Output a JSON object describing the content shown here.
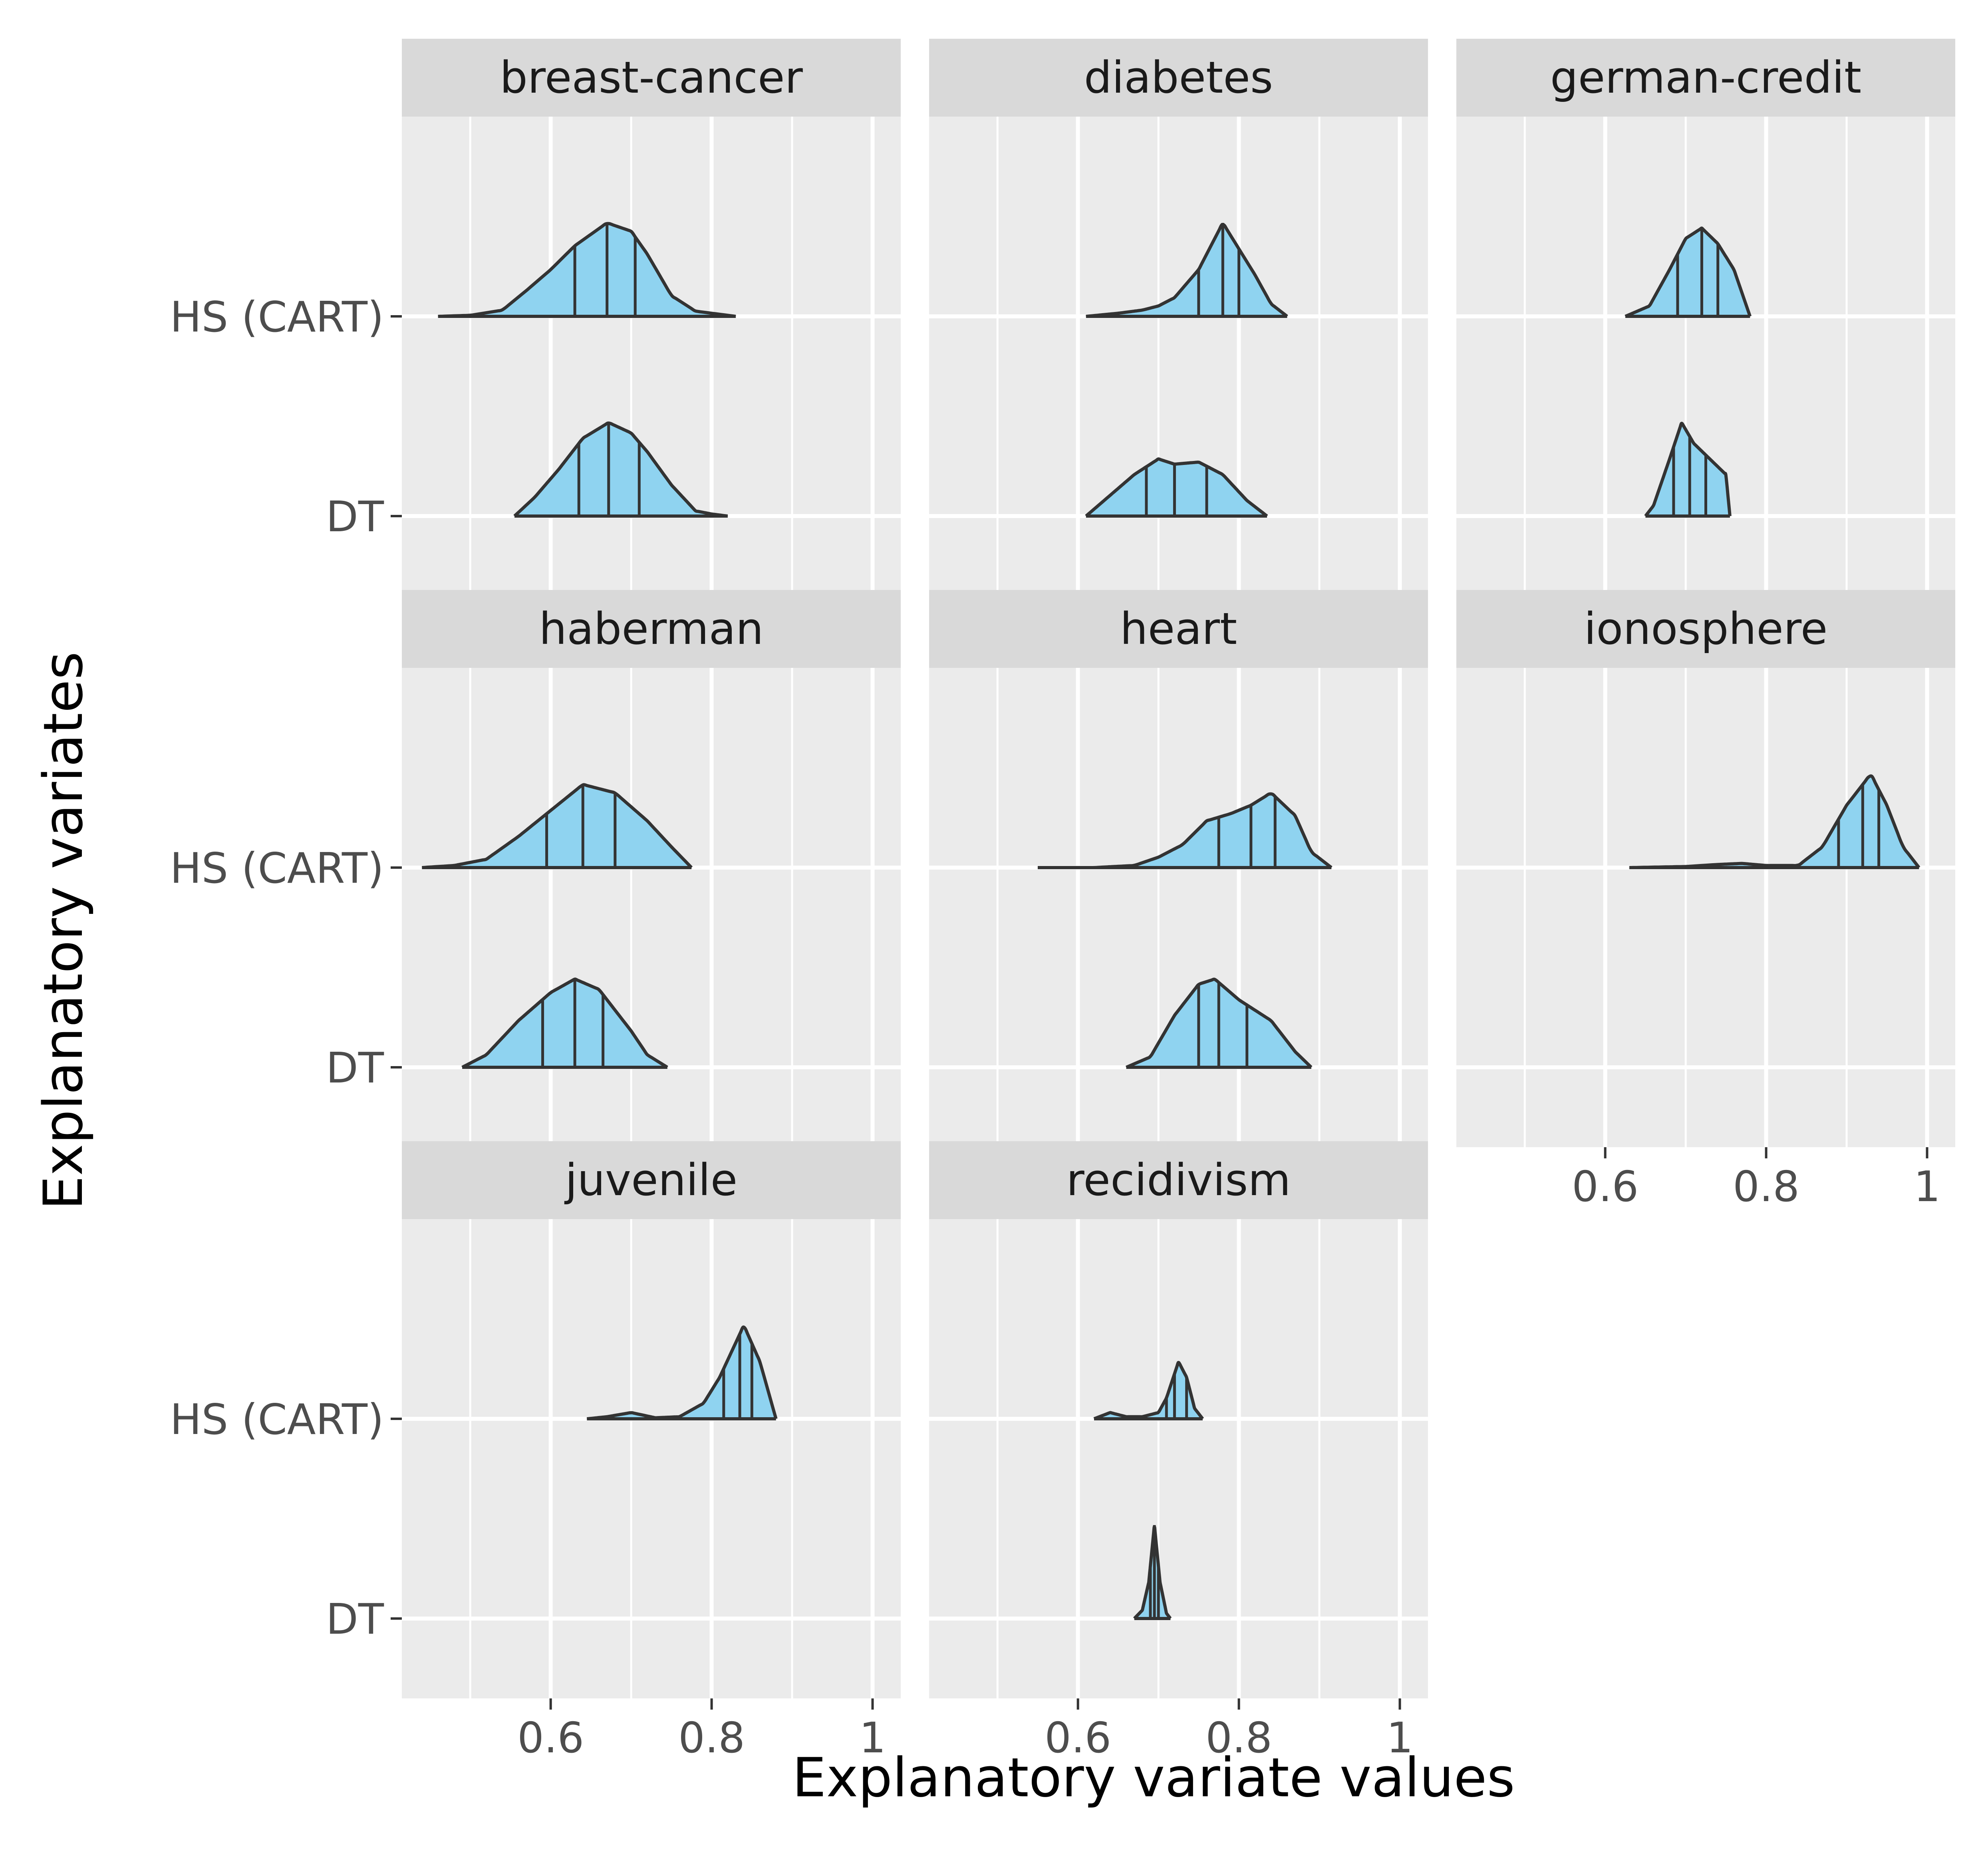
{
  "chart_data": {
    "type": "ridgeline",
    "xlabel": "Explanatory variate values",
    "ylabel": "Explanatory variates",
    "xticks": [
      0.6,
      0.8,
      1
    ],
    "xtick_labels": [
      "0.6",
      "0.8",
      "1"
    ],
    "xlim": [
      0.415,
      1.035
    ],
    "categories": [
      "HS (CART)",
      "DT"
    ],
    "quantile_lines": [
      0.25,
      0.5,
      0.75
    ],
    "fill_color": "#8fd3f0",
    "panel_bg": "#ebebeb",
    "strip_bg": "#d9d9d9",
    "grid_color": "#ffffff",
    "line_color": "#333333",
    "panels": [
      {
        "name": "breast-cancer",
        "series": [
          {
            "name": "HS (CART)",
            "min": 0.46,
            "max": 0.83,
            "quantiles": [
              0.63,
              0.67,
              0.705
            ],
            "profile": [
              [
                0.46,
                0.0
              ],
              [
                0.5,
                0.01
              ],
              [
                0.54,
                0.06
              ],
              [
                0.57,
                0.25
              ],
              [
                0.6,
                0.45
              ],
              [
                0.63,
                0.68
              ],
              [
                0.67,
                0.9
              ],
              [
                0.7,
                0.82
              ],
              [
                0.72,
                0.6
              ],
              [
                0.75,
                0.2
              ],
              [
                0.78,
                0.05
              ],
              [
                0.83,
                0.0
              ]
            ]
          },
          {
            "name": "DT",
            "min": 0.555,
            "max": 0.82,
            "quantiles": [
              0.635,
              0.672,
              0.71
            ],
            "profile": [
              [
                0.555,
                0.0
              ],
              [
                0.58,
                0.18
              ],
              [
                0.61,
                0.45
              ],
              [
                0.64,
                0.75
              ],
              [
                0.672,
                0.9
              ],
              [
                0.7,
                0.8
              ],
              [
                0.72,
                0.62
              ],
              [
                0.75,
                0.3
              ],
              [
                0.78,
                0.05
              ],
              [
                0.8,
                0.02
              ],
              [
                0.82,
                0.0
              ]
            ]
          }
        ]
      },
      {
        "name": "diabetes",
        "series": [
          {
            "name": "HS (CART)",
            "min": 0.61,
            "max": 0.86,
            "quantiles": [
              0.75,
              0.78,
              0.8
            ],
            "profile": [
              [
                0.61,
                0.0
              ],
              [
                0.65,
                0.03
              ],
              [
                0.68,
                0.06
              ],
              [
                0.7,
                0.1
              ],
              [
                0.72,
                0.18
              ],
              [
                0.75,
                0.45
              ],
              [
                0.78,
                0.9
              ],
              [
                0.8,
                0.65
              ],
              [
                0.82,
                0.4
              ],
              [
                0.84,
                0.12
              ],
              [
                0.86,
                0.0
              ]
            ]
          },
          {
            "name": "DT",
            "min": 0.61,
            "max": 0.835,
            "quantiles": [
              0.685,
              0.72,
              0.76
            ],
            "profile": [
              [
                0.61,
                0.0
              ],
              [
                0.64,
                0.2
              ],
              [
                0.67,
                0.4
              ],
              [
                0.7,
                0.55
              ],
              [
                0.72,
                0.5
              ],
              [
                0.75,
                0.52
              ],
              [
                0.78,
                0.4
              ],
              [
                0.81,
                0.15
              ],
              [
                0.835,
                0.0
              ]
            ]
          }
        ]
      },
      {
        "name": "german-credit",
        "series": [
          {
            "name": "HS (CART)",
            "min": 0.625,
            "max": 0.78,
            "quantiles": [
              0.69,
              0.72,
              0.74
            ],
            "profile": [
              [
                0.625,
                0.0
              ],
              [
                0.655,
                0.1
              ],
              [
                0.68,
                0.45
              ],
              [
                0.7,
                0.75
              ],
              [
                0.72,
                0.85
              ],
              [
                0.74,
                0.7
              ],
              [
                0.76,
                0.45
              ],
              [
                0.78,
                0.0
              ]
            ]
          },
          {
            "name": "DT",
            "min": 0.65,
            "max": 0.755,
            "quantiles": [
              0.685,
              0.705,
              0.725
            ],
            "profile": [
              [
                0.65,
                0.0
              ],
              [
                0.66,
                0.1
              ],
              [
                0.68,
                0.55
              ],
              [
                0.695,
                0.9
              ],
              [
                0.71,
                0.7
              ],
              [
                0.73,
                0.55
              ],
              [
                0.75,
                0.4
              ],
              [
                0.755,
                0.0
              ]
            ]
          }
        ]
      },
      {
        "name": "haberman",
        "series": [
          {
            "name": "HS (CART)",
            "min": 0.44,
            "max": 0.775,
            "quantiles": [
              0.595,
              0.64,
              0.68
            ],
            "profile": [
              [
                0.44,
                0.0
              ],
              [
                0.48,
                0.02
              ],
              [
                0.52,
                0.08
              ],
              [
                0.56,
                0.3
              ],
              [
                0.6,
                0.55
              ],
              [
                0.64,
                0.8
              ],
              [
                0.68,
                0.72
              ],
              [
                0.72,
                0.45
              ],
              [
                0.75,
                0.2
              ],
              [
                0.775,
                0.0
              ]
            ]
          },
          {
            "name": "DT",
            "min": 0.49,
            "max": 0.745,
            "quantiles": [
              0.59,
              0.63,
              0.665
            ],
            "profile": [
              [
                0.49,
                0.0
              ],
              [
                0.52,
                0.12
              ],
              [
                0.56,
                0.45
              ],
              [
                0.6,
                0.72
              ],
              [
                0.63,
                0.85
              ],
              [
                0.66,
                0.75
              ],
              [
                0.7,
                0.35
              ],
              [
                0.72,
                0.12
              ],
              [
                0.745,
                0.0
              ]
            ]
          }
        ]
      },
      {
        "name": "heart",
        "series": [
          {
            "name": "HS (CART)",
            "min": 0.55,
            "max": 0.915,
            "quantiles": [
              0.775,
              0.815,
              0.845
            ],
            "profile": [
              [
                0.55,
                0.0
              ],
              [
                0.62,
                0.0
              ],
              [
                0.67,
                0.02
              ],
              [
                0.7,
                0.1
              ],
              [
                0.73,
                0.22
              ],
              [
                0.76,
                0.45
              ],
              [
                0.79,
                0.52
              ],
              [
                0.815,
                0.6
              ],
              [
                0.84,
                0.72
              ],
              [
                0.87,
                0.5
              ],
              [
                0.89,
                0.15
              ],
              [
                0.915,
                0.0
              ]
            ]
          },
          {
            "name": "DT",
            "min": 0.66,
            "max": 0.89,
            "quantiles": [
              0.75,
              0.775,
              0.81
            ],
            "profile": [
              [
                0.66,
                0.0
              ],
              [
                0.69,
                0.1
              ],
              [
                0.72,
                0.5
              ],
              [
                0.75,
                0.8
              ],
              [
                0.77,
                0.85
              ],
              [
                0.8,
                0.65
              ],
              [
                0.84,
                0.45
              ],
              [
                0.87,
                0.15
              ],
              [
                0.89,
                0.0
              ]
            ]
          }
        ]
      },
      {
        "name": "ionosphere",
        "series": [
          {
            "name": "HS (CART)",
            "min": 0.63,
            "max": 0.99,
            "quantiles": [
              0.89,
              0.92,
              0.94
            ],
            "profile": [
              [
                0.63,
                0.0
              ],
              [
                0.7,
                0.01
              ],
              [
                0.74,
                0.03
              ],
              [
                0.77,
                0.04
              ],
              [
                0.8,
                0.02
              ],
              [
                0.84,
                0.02
              ],
              [
                0.87,
                0.2
              ],
              [
                0.9,
                0.6
              ],
              [
                0.93,
                0.9
              ],
              [
                0.95,
                0.6
              ],
              [
                0.97,
                0.2
              ],
              [
                0.99,
                0.0
              ]
            ]
          }
        ]
      },
      {
        "name": "juvenile",
        "series": [
          {
            "name": "HS (CART)",
            "min": 0.645,
            "max": 0.88,
            "quantiles": [
              0.815,
              0.835,
              0.85
            ],
            "profile": [
              [
                0.645,
                0.0
              ],
              [
                0.67,
                0.02
              ],
              [
                0.7,
                0.06
              ],
              [
                0.73,
                0.01
              ],
              [
                0.76,
                0.02
              ],
              [
                0.79,
                0.15
              ],
              [
                0.81,
                0.4
              ],
              [
                0.84,
                0.9
              ],
              [
                0.86,
                0.55
              ],
              [
                0.88,
                0.0
              ]
            ]
          }
        ]
      },
      {
        "name": "recidivism",
        "series": [
          {
            "name": "HS (CART)",
            "min": 0.62,
            "max": 0.755,
            "quantiles": [
              0.71,
              0.72,
              0.735
            ],
            "profile": [
              [
                0.62,
                0.0
              ],
              [
                0.64,
                0.06
              ],
              [
                0.66,
                0.02
              ],
              [
                0.68,
                0.02
              ],
              [
                0.7,
                0.06
              ],
              [
                0.71,
                0.2
              ],
              [
                0.725,
                0.55
              ],
              [
                0.735,
                0.4
              ],
              [
                0.745,
                0.1
              ],
              [
                0.755,
                0.0
              ]
            ]
          },
          {
            "name": "DT",
            "min": 0.67,
            "max": 0.715,
            "quantiles": [
              0.69,
              0.695,
              0.7
            ],
            "profile": [
              [
                0.67,
                0.0
              ],
              [
                0.68,
                0.08
              ],
              [
                0.688,
                0.35
              ],
              [
                0.695,
                0.9
              ],
              [
                0.702,
                0.35
              ],
              [
                0.71,
                0.05
              ],
              [
                0.715,
                0.0
              ]
            ]
          }
        ]
      }
    ]
  }
}
